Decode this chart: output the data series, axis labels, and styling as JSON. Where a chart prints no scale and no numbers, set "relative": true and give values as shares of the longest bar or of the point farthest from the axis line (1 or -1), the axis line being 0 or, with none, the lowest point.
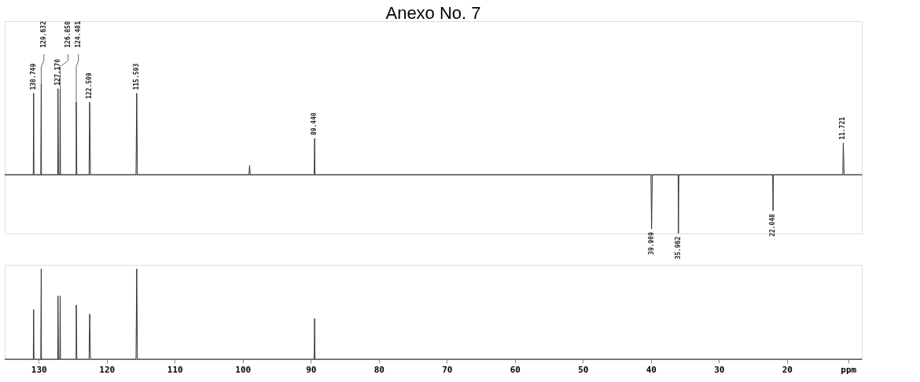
{
  "chart_data": [
    {
      "type": "line",
      "title": "Anexo No. 7",
      "relative": true,
      "xlim": [
        135,
        9
      ],
      "tick_labels": false,
      "grid": false,
      "legend": false,
      "series": [
        {
          "color": "#333333",
          "x": [
            135,
            130.8,
            130.749,
            130.7,
            129.7,
            129.632,
            129.6,
            127.2,
            127.17,
            127.1,
            126.9,
            126.85,
            126.8,
            124.5,
            124.481,
            124.4,
            122.6,
            122.509,
            122.4,
            115.7,
            115.593,
            115.5,
            99.1,
            99,
            98.9,
            89.5,
            89.44,
            89.4,
            40,
            39.909,
            39.8,
            36,
            35.962,
            35.9,
            22.1,
            22.048,
            22,
            11.8,
            11.721,
            11.6,
            9
          ],
          "values": [
            0,
            0,
            0.9,
            0,
            0,
            1.0,
            0,
            0,
            0.95,
            0,
            0,
            0.95,
            0,
            0,
            0.8,
            0,
            0,
            0.8,
            0,
            0,
            0.9,
            0,
            0,
            0.1,
            0,
            0,
            0.4,
            0,
            0,
            -0.6,
            0,
            0,
            -0.65,
            0,
            0,
            -0.4,
            0,
            0,
            0.35,
            0,
            0
          ]
        }
      ],
      "annotations": [
        {
          "text": "130.749",
          "x": 130.749,
          "y": 0.9
        },
        {
          "text": "129.632",
          "x": 129.632,
          "y": 1.0
        },
        {
          "text": "127.170",
          "x": 127.17,
          "y": 0.95
        },
        {
          "text": "126.850",
          "x": 126.85,
          "y": 0.95
        },
        {
          "text": "124.481",
          "x": 124.481,
          "y": 0.8
        },
        {
          "text": "122.509",
          "x": 122.509,
          "y": 0.8
        },
        {
          "text": "115.593",
          "x": 115.593,
          "y": 0.9
        },
        {
          "text": "89.440",
          "x": 89.44,
          "y": 0.4
        },
        {
          "text": "39.909",
          "x": 39.909,
          "y": -0.6
        },
        {
          "text": "35.962",
          "x": 35.962,
          "y": -0.65
        },
        {
          "text": "22.048",
          "x": 22.048,
          "y": -0.4
        },
        {
          "text": "11.721",
          "x": 11.721,
          "y": 0.35
        }
      ]
    },
    {
      "type": "line",
      "relative": true,
      "xlim": [
        135,
        9
      ],
      "tick_labels": "x",
      "grid": false,
      "legend": false,
      "xticks": [
        130,
        120,
        110,
        100,
        90,
        80,
        70,
        60,
        50,
        40,
        30,
        20,
        {
          "value": 11,
          "label": "ppm"
        }
      ],
      "series": [
        {
          "color": "#333333",
          "x": [
            135,
            130.8,
            130.749,
            130.7,
            129.7,
            129.632,
            129.6,
            127.2,
            127.17,
            127.1,
            126.9,
            126.85,
            126.8,
            124.5,
            124.481,
            124.4,
            122.6,
            122.509,
            122.4,
            115.7,
            115.593,
            115.5,
            89.5,
            89.44,
            89.4,
            9
          ],
          "values": [
            0,
            0,
            0.55,
            0,
            0,
            1.0,
            0,
            0,
            0.7,
            0,
            0,
            0.7,
            0,
            0,
            0.6,
            0,
            0,
            0.5,
            0,
            0,
            1.0,
            0,
            0,
            0.45,
            0,
            0
          ]
        }
      ]
    }
  ]
}
